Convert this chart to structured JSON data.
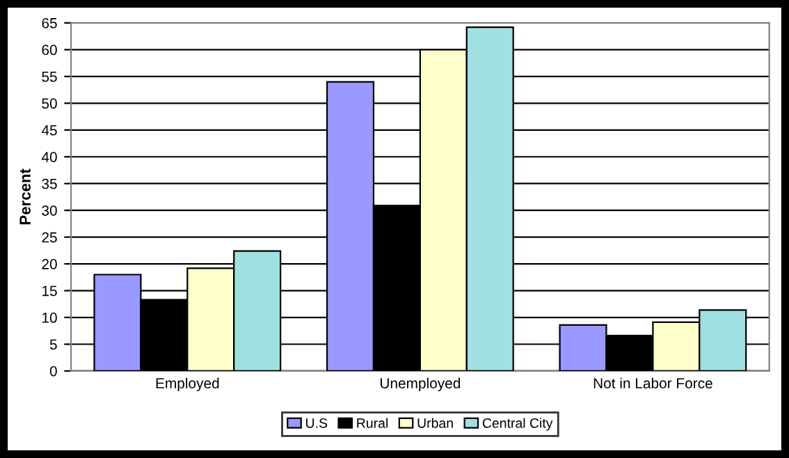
{
  "chart_data": {
    "type": "bar",
    "ylabel": "Percent",
    "categories": [
      "Employed",
      "Unemployed",
      "Not in Labor Force"
    ],
    "series": [
      {
        "name": "U.S",
        "color": "#9999ff",
        "values": [
          18,
          54,
          8.6
        ]
      },
      {
        "name": "Rural",
        "color": "#000000",
        "values": [
          13.3,
          30.9,
          6.6
        ]
      },
      {
        "name": "Urban",
        "color": "#ffffcc",
        "values": [
          19.2,
          60,
          9.1
        ]
      },
      {
        "name": "Central City",
        "color": "#a0e0e0",
        "values": [
          22.4,
          64.2,
          11.4
        ]
      }
    ],
    "ylim": [
      0,
      65
    ],
    "yticks": [
      0,
      5,
      10,
      15,
      20,
      25,
      30,
      35,
      40,
      45,
      50,
      55,
      60,
      65
    ],
    "grid": "y",
    "legend": "bottom"
  }
}
